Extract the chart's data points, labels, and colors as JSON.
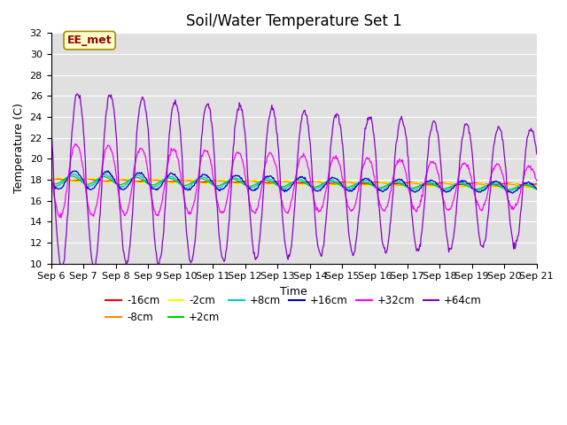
{
  "title": "Soil/Water Temperature Set 1",
  "xlabel": "Time",
  "ylabel": "Temperature (C)",
  "ylim": [
    10,
    32
  ],
  "xlim": [
    0,
    15
  ],
  "yticks": [
    10,
    12,
    14,
    16,
    18,
    20,
    22,
    24,
    26,
    28,
    30,
    32
  ],
  "xtick_labels": [
    "Sep 6",
    "Sep 7",
    "Sep 8",
    "Sep 9",
    "Sep 10",
    "Sep 11",
    "Sep 12",
    "Sep 13",
    "Sep 14",
    "Sep 15",
    "Sep 16",
    "Sep 17",
    "Sep 18",
    "Sep 19",
    "Sep 20",
    "Sep 21"
  ],
  "series_order": [
    "-16cm",
    "-8cm",
    "-2cm",
    "+2cm",
    "+8cm",
    "+16cm",
    "+32cm",
    "+64cm"
  ],
  "colors": {
    "-16cm": "#ff0000",
    "-8cm": "#ff8800",
    "-2cm": "#ffff00",
    "+2cm": "#00cc00",
    "+8cm": "#00cccc",
    "+16cm": "#0000bb",
    "+32cm": "#ff00ff",
    "+64cm": "#8800cc"
  },
  "annotation": "EE_met",
  "ann_x": 0.5,
  "ann_y": 31.0,
  "bg_color": "#e0e0e0",
  "fig_color": "#ffffff",
  "grid_color": "#ffffff",
  "title_fontsize": 12,
  "label_fontsize": 9,
  "tick_fontsize": 8
}
